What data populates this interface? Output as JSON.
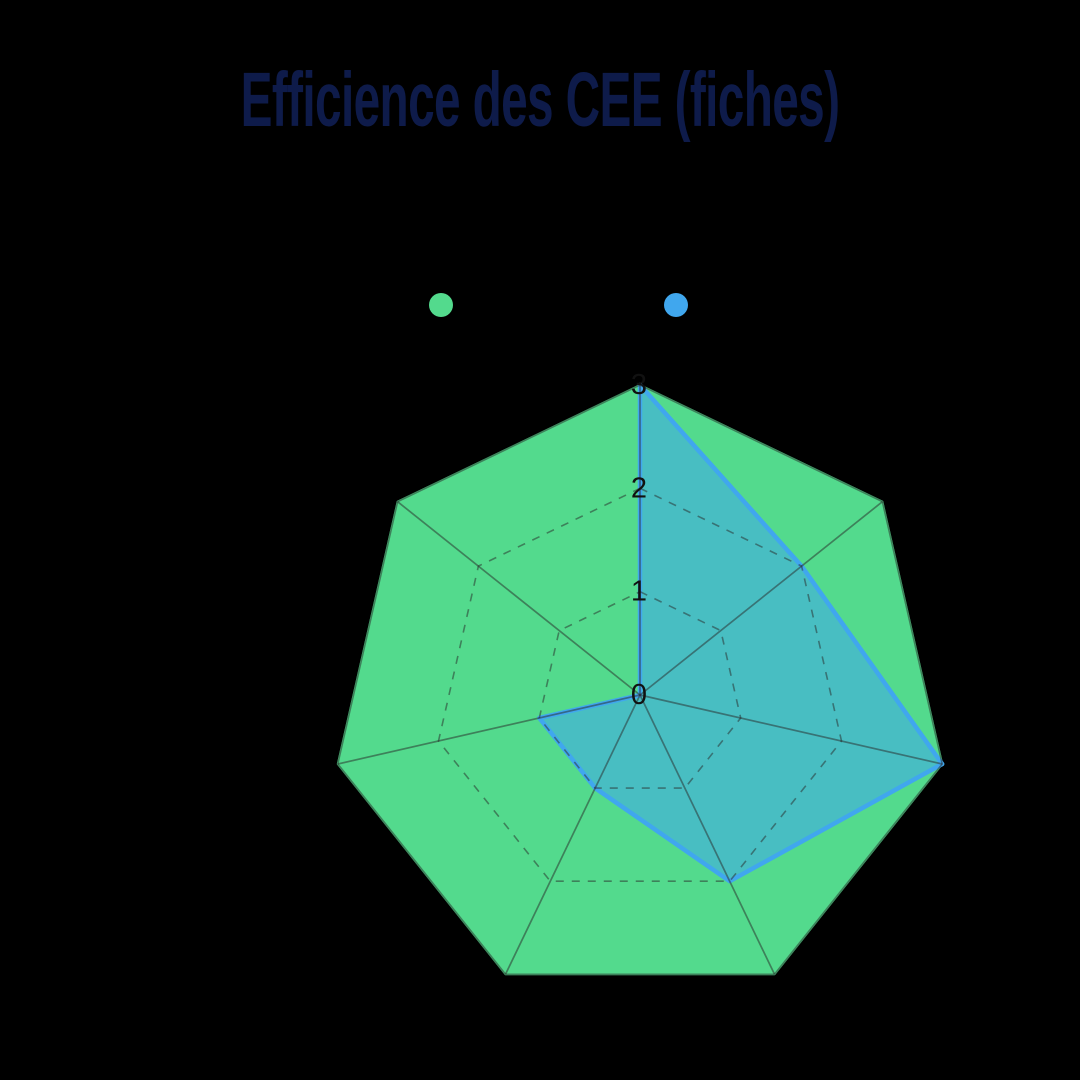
{
  "chart_data": {
    "type": "radar",
    "title": "Efficience des CEE (fiches)",
    "title_color": "#0E1B4A",
    "background_color": "#000000",
    "axes": 7,
    "axis_labels_visible": false,
    "rmax": 3,
    "radial_ticks": [
      "0",
      "1",
      "2",
      "3"
    ],
    "tick_color": "#111111",
    "grid": {
      "dashed_rings": [
        1,
        2
      ],
      "solid_ring": 3,
      "spokes": true,
      "color": "rgba(40,40,40,0.5)"
    },
    "series": [
      {
        "label": "",
        "color": "#53DA8D",
        "fill_opacity": 1,
        "border_width": 2,
        "values": [
          3,
          3,
          3,
          3,
          3,
          3,
          3
        ]
      },
      {
        "label": "",
        "color": "#40A7EE",
        "fill_opacity": 0.55,
        "border_width": 4.5,
        "values": [
          3,
          2,
          3,
          2,
          1,
          1,
          0
        ]
      }
    ],
    "legend": {
      "position": "top",
      "items": [
        {
          "label": "",
          "color": "#53DA8D"
        },
        {
          "label": "",
          "color": "#40A7EE"
        }
      ]
    }
  }
}
